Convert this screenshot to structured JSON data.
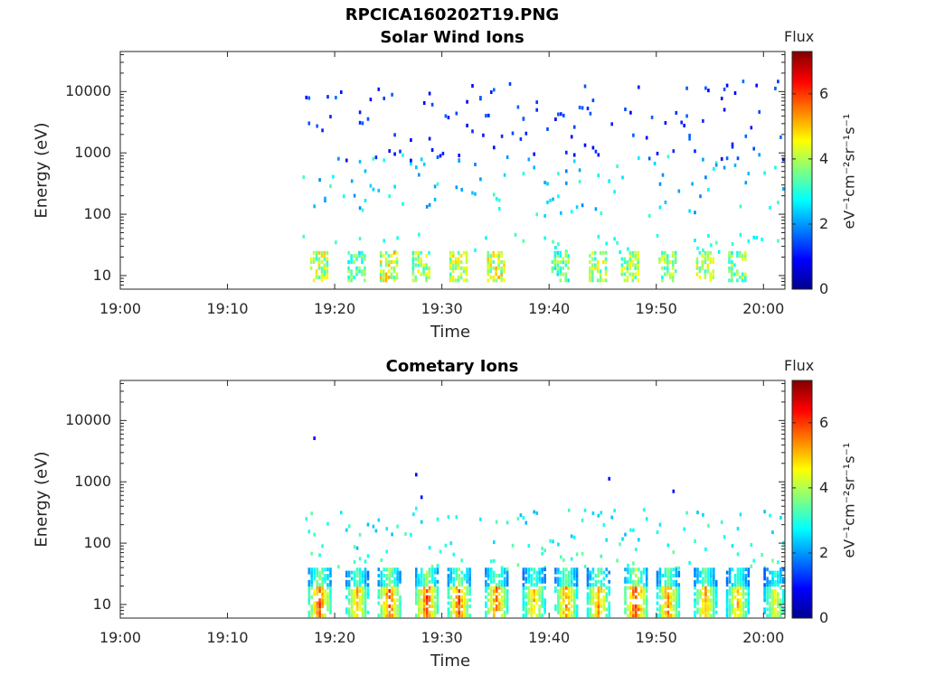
{
  "figure_title": "RPCICA160202T19.PNG",
  "colormap": [
    "#00008f",
    "#0000ff",
    "#0080ff",
    "#00ffff",
    "#80ff80",
    "#ffff00",
    "#ff8000",
    "#ff0000",
    "#800000"
  ],
  "chart_data": [
    {
      "type": "heatmap",
      "title": "Solar Wind Ions",
      "xlabel": "Time",
      "ylabel": "Energy (eV)",
      "x_ticks": [
        "19:00",
        "19:10",
        "19:20",
        "19:30",
        "19:40",
        "19:50",
        "20:00"
      ],
      "x_range": [
        "19:00",
        "20:02"
      ],
      "y_scale": "log",
      "y_ticks": [
        "10",
        "100",
        "1000",
        "10000"
      ],
      "y_range": [
        6,
        45000
      ],
      "colorbar": {
        "title": "Flux",
        "ticks": [
          "0",
          "2",
          "4",
          "6"
        ],
        "range": [
          0,
          7.3
        ],
        "units": "eV⁻¹cm⁻²sr⁻¹s⁻¹"
      },
      "data_start": "19:17",
      "data_end": "20:02",
      "bursts": [
        {
          "t": "19:18:30",
          "v": 5.0
        },
        {
          "t": "19:22:00",
          "v": 4.2
        },
        {
          "t": "19:25:00",
          "v": 5.2
        },
        {
          "t": "19:28:00",
          "v": 4.8
        },
        {
          "t": "19:31:30",
          "v": 5.0
        },
        {
          "t": "19:35:00",
          "v": 5.2
        },
        {
          "t": "19:41:00",
          "v": 4.2
        },
        {
          "t": "19:44:30",
          "v": 4.8
        },
        {
          "t": "19:47:30",
          "v": 4.6
        },
        {
          "t": "19:51:00",
          "v": 4.6
        },
        {
          "t": "19:54:30",
          "v": 4.8
        },
        {
          "t": "19:57:30",
          "v": 4.4
        }
      ]
    },
    {
      "type": "heatmap",
      "title": "Cometary Ions",
      "xlabel": "Time",
      "ylabel": "Energy (eV)",
      "x_ticks": [
        "19:00",
        "19:10",
        "19:20",
        "19:30",
        "19:40",
        "19:50",
        "20:00"
      ],
      "x_range": [
        "19:00",
        "20:02"
      ],
      "y_scale": "log",
      "y_ticks": [
        "10",
        "100",
        "1000",
        "10000"
      ],
      "y_range": [
        6,
        45000
      ],
      "colorbar": {
        "title": "Flux",
        "ticks": [
          "0",
          "2",
          "4",
          "6"
        ],
        "range": [
          0,
          7.3
        ],
        "units": "eV⁻¹cm⁻²sr⁻¹s⁻¹"
      },
      "data_start": "19:17",
      "data_end": "20:02",
      "isolated_points": [
        {
          "t": "19:18:00",
          "e": 5500
        },
        {
          "t": "19:27:30",
          "e": 1400
        },
        {
          "t": "19:28:00",
          "e": 600
        },
        {
          "t": "19:45:30",
          "e": 1200
        },
        {
          "t": "19:51:30",
          "e": 750
        }
      ],
      "bursts": [
        {
          "t": "19:18:30",
          "v": 6.2
        },
        {
          "t": "19:22:00",
          "v": 5.6
        },
        {
          "t": "19:25:00",
          "v": 6.2
        },
        {
          "t": "19:28:30",
          "v": 6.4
        },
        {
          "t": "19:31:30",
          "v": 6.2
        },
        {
          "t": "19:35:00",
          "v": 6.0
        },
        {
          "t": "19:38:30",
          "v": 5.4
        },
        {
          "t": "19:41:30",
          "v": 5.8
        },
        {
          "t": "19:44:30",
          "v": 5.8
        },
        {
          "t": "19:48:00",
          "v": 6.6
        },
        {
          "t": "19:51:00",
          "v": 5.8
        },
        {
          "t": "19:54:30",
          "v": 5.6
        },
        {
          "t": "19:57:30",
          "v": 5.4
        },
        {
          "t": "20:01:00",
          "v": 4.8
        }
      ]
    }
  ]
}
